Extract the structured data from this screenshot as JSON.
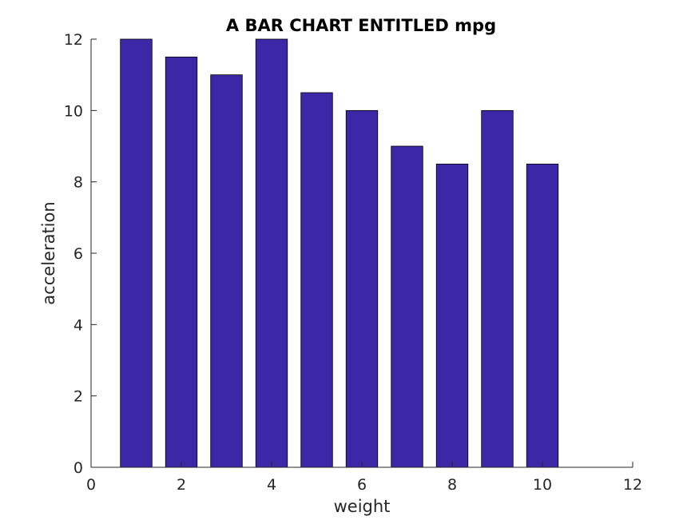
{
  "chart_data": {
    "type": "bar",
    "title": "A BAR CHART ENTITLED mpg",
    "xlabel": "weight",
    "ylabel": "acceleration",
    "x": [
      1,
      2,
      3,
      4,
      5,
      6,
      7,
      8,
      9,
      10
    ],
    "values": [
      12,
      11.5,
      11,
      12,
      10.5,
      10,
      9,
      8.5,
      10,
      8.5
    ],
    "xlim": [
      0,
      12
    ],
    "ylim": [
      0,
      12
    ],
    "xticks": [
      "0",
      "2",
      "4",
      "6",
      "8",
      "10",
      "12"
    ],
    "yticks": [
      "0",
      "2",
      "4",
      "6",
      "8",
      "10",
      "12"
    ],
    "bar_color": "#3c28a6",
    "grid": false,
    "legend": "none"
  }
}
